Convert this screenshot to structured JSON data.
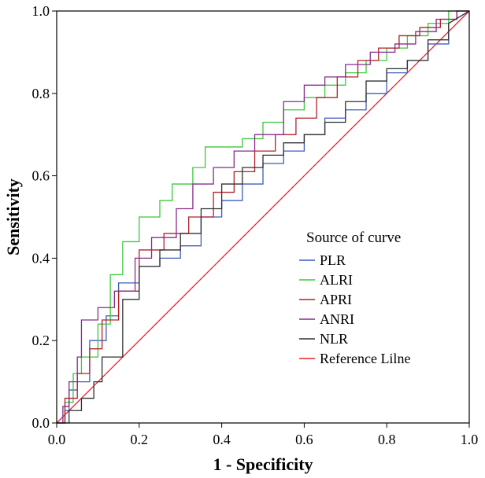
{
  "chart_data": {
    "type": "line",
    "title": "",
    "xlabel": "1 - Specificity",
    "ylabel": "Sensitivity",
    "xlim": [
      0,
      1
    ],
    "ylim": [
      0,
      1
    ],
    "xticks": [
      "0.0",
      "0.2",
      "0.4",
      "0.6",
      "0.8",
      "1.0"
    ],
    "yticks": [
      "0.0",
      "0.2",
      "0.4",
      "0.6",
      "0.8",
      "1.0"
    ],
    "legend": {
      "title": "Source of curve",
      "placement": "right"
    },
    "series": [
      {
        "name": "PLR",
        "color": "#3c5dbd",
        "x": [
          0,
          0.02,
          0.02,
          0.03,
          0.03,
          0.05,
          0.05,
          0.08,
          0.08,
          0.12,
          0.12,
          0.15,
          0.15,
          0.2,
          0.2,
          0.25,
          0.25,
          0.3,
          0.3,
          0.35,
          0.35,
          0.4,
          0.4,
          0.45,
          0.45,
          0.5,
          0.5,
          0.55,
          0.55,
          0.6,
          0.6,
          0.65,
          0.65,
          0.7,
          0.7,
          0.75,
          0.75,
          0.8,
          0.8,
          0.85,
          0.85,
          0.9,
          0.9,
          0.95,
          0.95,
          1.0
        ],
        "y": [
          0,
          0,
          0.03,
          0.03,
          0.08,
          0.08,
          0.1,
          0.1,
          0.2,
          0.2,
          0.26,
          0.26,
          0.34,
          0.34,
          0.38,
          0.38,
          0.4,
          0.4,
          0.43,
          0.43,
          0.5,
          0.5,
          0.54,
          0.54,
          0.58,
          0.58,
          0.63,
          0.63,
          0.66,
          0.66,
          0.7,
          0.7,
          0.74,
          0.74,
          0.76,
          0.76,
          0.8,
          0.8,
          0.85,
          0.85,
          0.88,
          0.88,
          0.92,
          0.92,
          0.97,
          1.0
        ]
      },
      {
        "name": "ALRI",
        "color": "#3cc83c",
        "x": [
          0,
          0.02,
          0.02,
          0.04,
          0.04,
          0.06,
          0.06,
          0.1,
          0.1,
          0.13,
          0.13,
          0.16,
          0.16,
          0.2,
          0.2,
          0.25,
          0.25,
          0.28,
          0.28,
          0.33,
          0.33,
          0.36,
          0.36,
          0.45,
          0.45,
          0.5,
          0.5,
          0.55,
          0.55,
          0.6,
          0.6,
          0.65,
          0.65,
          0.7,
          0.7,
          0.75,
          0.75,
          0.8,
          0.8,
          0.85,
          0.85,
          0.9,
          0.9,
          0.95,
          0.95,
          1.0
        ],
        "y": [
          0,
          0,
          0.05,
          0.05,
          0.12,
          0.12,
          0.16,
          0.16,
          0.24,
          0.24,
          0.36,
          0.36,
          0.44,
          0.44,
          0.5,
          0.5,
          0.54,
          0.54,
          0.58,
          0.58,
          0.62,
          0.62,
          0.67,
          0.67,
          0.69,
          0.69,
          0.73,
          0.73,
          0.76,
          0.76,
          0.79,
          0.79,
          0.82,
          0.82,
          0.85,
          0.85,
          0.88,
          0.88,
          0.91,
          0.91,
          0.94,
          0.94,
          0.97,
          0.97,
          1.0,
          1.0
        ]
      },
      {
        "name": "APRI",
        "color": "#b4202a",
        "x": [
          0,
          0.02,
          0.02,
          0.05,
          0.05,
          0.08,
          0.08,
          0.11,
          0.11,
          0.15,
          0.15,
          0.2,
          0.2,
          0.26,
          0.26,
          0.32,
          0.32,
          0.38,
          0.38,
          0.43,
          0.43,
          0.48,
          0.48,
          0.53,
          0.53,
          0.58,
          0.58,
          0.63,
          0.63,
          0.68,
          0.68,
          0.73,
          0.73,
          0.78,
          0.78,
          0.83,
          0.83,
          0.88,
          0.88,
          0.93,
          0.93,
          0.97,
          0.97,
          1.0
        ],
        "y": [
          0,
          0,
          0.06,
          0.06,
          0.12,
          0.12,
          0.18,
          0.18,
          0.25,
          0.25,
          0.32,
          0.32,
          0.42,
          0.42,
          0.46,
          0.46,
          0.5,
          0.5,
          0.56,
          0.56,
          0.61,
          0.61,
          0.66,
          0.66,
          0.7,
          0.7,
          0.74,
          0.74,
          0.79,
          0.79,
          0.84,
          0.84,
          0.88,
          0.88,
          0.91,
          0.91,
          0.94,
          0.94,
          0.96,
          0.96,
          0.98,
          0.98,
          1.0,
          1.0
        ]
      },
      {
        "name": "ANRI",
        "color": "#862c8c",
        "x": [
          0,
          0.015,
          0.015,
          0.03,
          0.03,
          0.05,
          0.05,
          0.06,
          0.06,
          0.1,
          0.1,
          0.14,
          0.14,
          0.19,
          0.19,
          0.23,
          0.23,
          0.29,
          0.29,
          0.33,
          0.33,
          0.38,
          0.38,
          0.43,
          0.43,
          0.48,
          0.48,
          0.55,
          0.55,
          0.6,
          0.6,
          0.65,
          0.65,
          0.7,
          0.7,
          0.76,
          0.76,
          0.82,
          0.82,
          0.87,
          0.87,
          0.92,
          0.92,
          0.97,
          0.97,
          1.0
        ],
        "y": [
          0,
          0,
          0.04,
          0.04,
          0.1,
          0.1,
          0.16,
          0.16,
          0.25,
          0.25,
          0.28,
          0.28,
          0.32,
          0.32,
          0.4,
          0.4,
          0.45,
          0.45,
          0.52,
          0.52,
          0.58,
          0.58,
          0.62,
          0.62,
          0.66,
          0.66,
          0.7,
          0.7,
          0.78,
          0.78,
          0.82,
          0.82,
          0.84,
          0.84,
          0.87,
          0.87,
          0.9,
          0.9,
          0.92,
          0.92,
          0.95,
          0.95,
          0.98,
          0.98,
          1.0,
          1.0
        ]
      },
      {
        "name": "NLR",
        "color": "#303030",
        "x": [
          0,
          0.03,
          0.03,
          0.06,
          0.06,
          0.09,
          0.09,
          0.11,
          0.11,
          0.16,
          0.16,
          0.2,
          0.2,
          0.25,
          0.25,
          0.3,
          0.3,
          0.35,
          0.35,
          0.4,
          0.4,
          0.45,
          0.45,
          0.5,
          0.5,
          0.55,
          0.55,
          0.6,
          0.6,
          0.65,
          0.65,
          0.7,
          0.7,
          0.75,
          0.75,
          0.8,
          0.8,
          0.85,
          0.85,
          0.9,
          0.9,
          0.95,
          0.95,
          1.0
        ],
        "y": [
          0,
          0,
          0.03,
          0.03,
          0.06,
          0.06,
          0.1,
          0.1,
          0.16,
          0.16,
          0.3,
          0.3,
          0.38,
          0.38,
          0.42,
          0.42,
          0.46,
          0.46,
          0.52,
          0.52,
          0.58,
          0.58,
          0.62,
          0.62,
          0.65,
          0.65,
          0.68,
          0.68,
          0.7,
          0.7,
          0.73,
          0.73,
          0.78,
          0.78,
          0.83,
          0.83,
          0.86,
          0.86,
          0.88,
          0.88,
          0.93,
          0.93,
          0.97,
          1.0
        ]
      },
      {
        "name": "Reference Lilne",
        "color": "#e8202a",
        "x": [
          0,
          1
        ],
        "y": [
          0,
          1
        ]
      }
    ]
  }
}
